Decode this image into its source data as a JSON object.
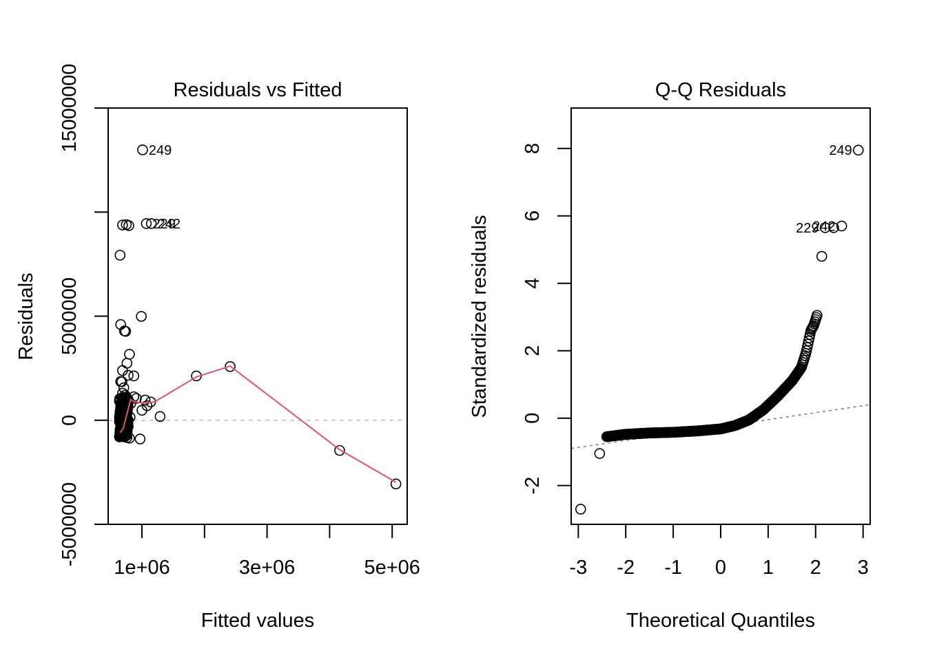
{
  "chart_data": [
    {
      "type": "scatter",
      "title": "Residuals vs Fitted",
      "xlabel": "Fitted values",
      "ylabel": "Residuals",
      "xlim": [
        460000,
        5240000
      ],
      "ylim": [
        -5000000,
        15000000
      ],
      "xticks": [
        1000000,
        2000000,
        3000000,
        4000000,
        5000000
      ],
      "xtick_labels": [
        "1e+06",
        "",
        "3e+06",
        "",
        "5e+06"
      ],
      "yticks": [
        -5000000,
        0,
        5000000,
        10000000,
        15000000
      ],
      "ytick_labels": [
        "-5000000",
        "0",
        "5000000",
        "",
        "15000000"
      ],
      "reference_line": {
        "y": 0,
        "style": "dashed",
        "color": "#bebebe"
      },
      "smoother_color": "#df536b",
      "grid": false,
      "points": [
        {
          "x": 1010000,
          "y": 12990000,
          "label": "249"
        },
        {
          "x": 1150000,
          "y": 9450000,
          "label": "242"
        },
        {
          "x": 1070000,
          "y": 9450000,
          "label": "229"
        },
        {
          "x": 750000,
          "y": 9400000
        },
        {
          "x": 690000,
          "y": 9380000
        },
        {
          "x": 790000,
          "y": 9350000
        },
        {
          "x": 650000,
          "y": 7930000
        },
        {
          "x": 990000,
          "y": 4990000
        },
        {
          "x": 660000,
          "y": 4600000
        },
        {
          "x": 720000,
          "y": 4290000
        },
        {
          "x": 740000,
          "y": 4270000
        },
        {
          "x": 800000,
          "y": 3170000
        },
        {
          "x": 760000,
          "y": 2740000
        },
        {
          "x": 690000,
          "y": 2390000
        },
        {
          "x": 780000,
          "y": 2160000
        },
        {
          "x": 870000,
          "y": 2130000
        },
        {
          "x": 660000,
          "y": 1860000
        },
        {
          "x": 680000,
          "y": 1850000
        },
        {
          "x": 710000,
          "y": 1560000
        },
        {
          "x": 690000,
          "y": 1300000
        },
        {
          "x": 730000,
          "y": 1200000
        },
        {
          "x": 870000,
          "y": 1130000
        },
        {
          "x": 910000,
          "y": 1050000
        },
        {
          "x": 1050000,
          "y": 970000
        },
        {
          "x": 1140000,
          "y": 880000
        },
        {
          "x": 690000,
          "y": 900000
        },
        {
          "x": 760000,
          "y": 950000
        },
        {
          "x": 820000,
          "y": 800000
        },
        {
          "x": 1080000,
          "y": 700000
        },
        {
          "x": 680000,
          "y": 650000
        },
        {
          "x": 720000,
          "y": 550000
        },
        {
          "x": 1000000,
          "y": 480000
        },
        {
          "x": 650000,
          "y": 400000
        },
        {
          "x": 760000,
          "y": 380000
        },
        {
          "x": 700000,
          "y": 200000
        },
        {
          "x": 810000,
          "y": 150000
        },
        {
          "x": 1290000,
          "y": 180000
        },
        {
          "x": 660000,
          "y": 50000
        },
        {
          "x": 730000,
          "y": -50000
        },
        {
          "x": 680000,
          "y": -200000
        },
        {
          "x": 780000,
          "y": -300000
        },
        {
          "x": 650000,
          "y": -450000
        },
        {
          "x": 700000,
          "y": -550000
        },
        {
          "x": 740000,
          "y": -650000
        },
        {
          "x": 660000,
          "y": -700000
        },
        {
          "x": 690000,
          "y": -760000
        },
        {
          "x": 720000,
          "y": -800000
        },
        {
          "x": 760000,
          "y": -830000
        },
        {
          "x": 800000,
          "y": -860000
        },
        {
          "x": 970000,
          "y": -900000
        },
        {
          "x": 680000,
          "y": -740000
        },
        {
          "x": 700000,
          "y": -680000
        },
        {
          "x": 650000,
          "y": -620000
        },
        {
          "x": 670000,
          "y": -380000
        },
        {
          "x": 710000,
          "y": -250000
        },
        {
          "x": 690000,
          "y": 0
        },
        {
          "x": 750000,
          "y": 100000
        },
        {
          "x": 1870000,
          "y": 2130000
        },
        {
          "x": 2410000,
          "y": 2580000
        },
        {
          "x": 4160000,
          "y": -1450000
        },
        {
          "x": 5060000,
          "y": -3060000
        }
      ],
      "smoother": [
        {
          "x": 650000,
          "y": -600000
        },
        {
          "x": 700000,
          "y": -400000
        },
        {
          "x": 760000,
          "y": 300000
        },
        {
          "x": 820000,
          "y": 1000000
        },
        {
          "x": 860000,
          "y": 900000
        },
        {
          "x": 1000000,
          "y": 820000
        },
        {
          "x": 1200000,
          "y": 880000
        },
        {
          "x": 1870000,
          "y": 2080000
        },
        {
          "x": 2410000,
          "y": 2600000
        },
        {
          "x": 4160000,
          "y": -1410000
        },
        {
          "x": 5060000,
          "y": -2980000
        }
      ]
    },
    {
      "type": "scatter",
      "title": "Q-Q Residuals",
      "xlabel": "Theoretical Quantiles",
      "ylabel": "Standardized residuals",
      "xlim": [
        -3.15,
        3.15
      ],
      "ylim": [
        -3.15,
        9.2
      ],
      "xticks": [
        -3,
        -2,
        -1,
        0,
        1,
        2,
        3
      ],
      "xtick_labels": [
        "-3",
        "-2",
        "-1",
        "0",
        "1",
        "2",
        "3"
      ],
      "yticks": [
        -2,
        0,
        2,
        4,
        6,
        8
      ],
      "ytick_labels": [
        "-2",
        "0",
        "2",
        "4",
        "6",
        "8"
      ],
      "reference_line": {
        "from": [
          -3.15,
          -0.9
        ],
        "to": [
          3.15,
          0.4
        ],
        "style": "dotted",
        "color": "#808080"
      },
      "grid": false,
      "labeled_points": [
        {
          "x": 2.9,
          "y": 7.95,
          "label": "249"
        },
        {
          "x": 2.55,
          "y": 5.7,
          "label": "242"
        },
        {
          "x": 2.2,
          "y": 5.65,
          "label": "229"
        }
      ],
      "extra_points": [
        {
          "x": 2.38,
          "y": 5.65
        },
        {
          "x": 2.13,
          "y": 4.8
        },
        {
          "x": -2.95,
          "y": -2.7
        },
        {
          "x": -2.55,
          "y": -1.05
        }
      ],
      "curve_model": {
        "description": "dense sample quantiles (n≈300) following S-shaped curve",
        "anchors": [
          {
            "q": -2.4,
            "y": -0.55
          },
          {
            "q": -2.0,
            "y": -0.48
          },
          {
            "q": -1.5,
            "y": -0.44
          },
          {
            "q": -1.0,
            "y": -0.42
          },
          {
            "q": -0.5,
            "y": -0.38
          },
          {
            "q": 0.0,
            "y": -0.32
          },
          {
            "q": 0.3,
            "y": -0.22
          },
          {
            "q": 0.6,
            "y": -0.05
          },
          {
            "q": 0.9,
            "y": 0.25
          },
          {
            "q": 1.2,
            "y": 0.65
          },
          {
            "q": 1.5,
            "y": 1.1
          },
          {
            "q": 1.7,
            "y": 1.5
          },
          {
            "q": 1.8,
            "y": 1.95
          },
          {
            "q": 1.9,
            "y": 2.6
          },
          {
            "q": 1.96,
            "y": 2.75
          },
          {
            "q": 2.03,
            "y": 3.05
          }
        ]
      }
    }
  ]
}
